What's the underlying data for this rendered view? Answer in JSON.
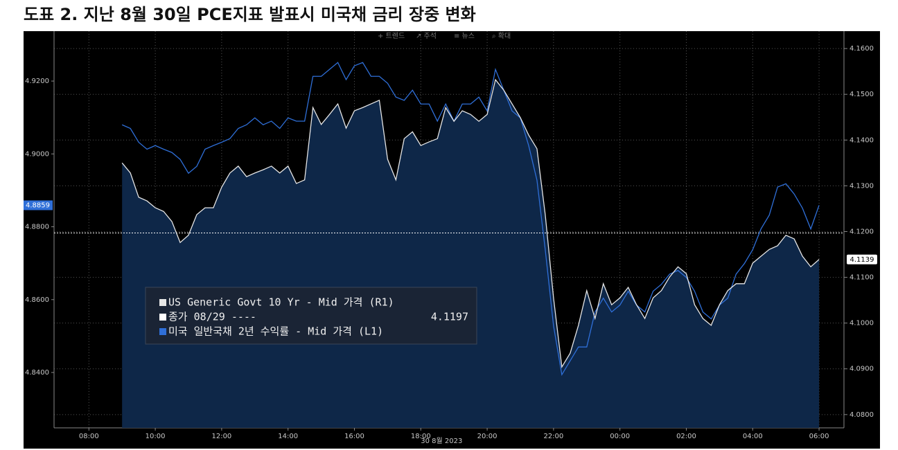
{
  "chart_data": {
    "type": "line",
    "title": "도표 2. 지난 8월 30일 PCE지표 발표시 미국채 금리 장중 변화",
    "toolbar": [
      "+ 트렌드",
      "↗ 주석",
      "≡ 뉴스",
      "⌕ 확대"
    ],
    "x_label": "30 8월 2023",
    "x": [
      9,
      9.25,
      9.5,
      9.75,
      10,
      10.25,
      10.5,
      10.75,
      11,
      11.25,
      11.5,
      11.75,
      12,
      12.25,
      12.5,
      12.75,
      13,
      13.25,
      13.5,
      13.75,
      14,
      14.25,
      14.5,
      14.75,
      15,
      15.25,
      15.5,
      15.75,
      16,
      16.25,
      16.5,
      16.75,
      17,
      17.25,
      17.5,
      17.75,
      18,
      18.25,
      18.5,
      18.75,
      19,
      19.25,
      19.5,
      19.75,
      20,
      20.25,
      20.5,
      20.75,
      21,
      21.25,
      21.5,
      21.75,
      22,
      22.25,
      22.5,
      22.75,
      23,
      23.25,
      23.5,
      23.75,
      24,
      24.25,
      24.5,
      24.75,
      25,
      25.25,
      25.5,
      25.75,
      26,
      26.25,
      26.5,
      26.75,
      27,
      27.25,
      27.5,
      27.75,
      28,
      28.25,
      28.5,
      28.75,
      29,
      29.25,
      29.5,
      29.75,
      30
    ],
    "series": [
      {
        "name": "US Generic Govt 10 Yr - Mid 가격 (R1)",
        "color": "#e6e6e6",
        "fill": "#0e2748",
        "axis": "y2",
        "values": [
          4.135,
          4.1328,
          4.1275,
          4.1267,
          4.1252,
          4.1244,
          4.1222,
          4.1176,
          4.1192,
          4.1237,
          4.1252,
          4.1252,
          4.1297,
          4.1328,
          4.1343,
          4.132,
          4.1328,
          4.1335,
          4.1343,
          4.1328,
          4.1343,
          4.1305,
          4.1313,
          4.1471,
          4.1434,
          4.1456,
          4.1479,
          4.1426,
          4.1464,
          4.1471,
          4.1479,
          4.1487,
          4.1358,
          4.1313,
          4.1403,
          4.1418,
          4.1388,
          4.1396,
          4.1403,
          4.1471,
          4.1441,
          4.1464,
          4.1456,
          4.1441,
          4.1456,
          4.1532,
          4.1509,
          4.1479,
          4.1449,
          4.1411,
          4.1381,
          4.1237,
          4.1055,
          4.0904,
          4.0934,
          4.0995,
          4.1071,
          4.101,
          4.1086,
          4.104,
          4.1055,
          4.1078,
          4.104,
          4.101,
          4.1055,
          4.1071,
          4.1101,
          4.1123,
          4.1108,
          4.104,
          4.101,
          4.0995,
          4.104,
          4.1071,
          4.1086,
          4.1086,
          4.1131,
          4.1146,
          4.1161,
          4.1169,
          4.1192,
          4.1184,
          4.1146,
          4.1123,
          4.1139
        ]
      },
      {
        "name": "미국 일반국채 2년 수익률 - Mid 가격 (L1)",
        "color": "#2f6fd8",
        "axis": "y",
        "values": [
          4.908,
          4.907,
          4.9032,
          4.9013,
          4.9023,
          4.9013,
          4.9004,
          4.8985,
          4.8947,
          4.8966,
          4.9013,
          4.9023,
          4.9032,
          4.9042,
          4.907,
          4.908,
          4.9099,
          4.908,
          4.909,
          4.907,
          4.9099,
          4.909,
          4.909,
          4.9213,
          4.9213,
          4.9232,
          4.9251,
          4.9204,
          4.9242,
          4.9251,
          4.9213,
          4.9213,
          4.9194,
          4.9156,
          4.9147,
          4.9175,
          4.9137,
          4.9137,
          4.909,
          4.9137,
          4.909,
          4.9137,
          4.9137,
          4.9156,
          4.9118,
          4.9232,
          4.9175,
          4.9118,
          4.9099,
          4.9023,
          4.8928,
          4.8737,
          4.8528,
          4.8394,
          4.8432,
          4.847,
          4.847,
          4.8566,
          4.8604,
          4.8566,
          4.8585,
          4.8623,
          4.8585,
          4.8566,
          4.8623,
          4.8642,
          4.867,
          4.868,
          4.8661,
          4.8623,
          4.8566,
          4.8547,
          4.8585,
          4.8604,
          4.867,
          4.8699,
          4.8737,
          4.8794,
          4.8832,
          4.8909,
          4.8918,
          4.889,
          4.8851,
          4.8794,
          4.8859
        ]
      }
    ],
    "prev_close": {
      "label": "종가 08/29 ----",
      "value": 4.1197,
      "color": "#ffffff"
    },
    "xlim": [
      6.95,
      30.75
    ],
    "xticks": [
      {
        "value": 8,
        "label": "08:00"
      },
      {
        "value": 10,
        "label": "10:00"
      },
      {
        "value": 12,
        "label": "12:00"
      },
      {
        "value": 14,
        "label": "14:00"
      },
      {
        "value": 16,
        "label": "16:00"
      },
      {
        "value": 18,
        "label": "18:00"
      },
      {
        "value": 20,
        "label": "20:00"
      },
      {
        "value": 22,
        "label": "22:00"
      },
      {
        "value": 24,
        "label": "00:00"
      },
      {
        "value": 26,
        "label": "02:00"
      },
      {
        "value": 28,
        "label": "04:00"
      },
      {
        "value": 30,
        "label": "06:00"
      }
    ],
    "ylim": [
      4.8248,
      4.9337
    ],
    "yticks": [
      {
        "value": 4.84,
        "label": "4.8400"
      },
      {
        "value": 4.86,
        "label": "4.8600"
      },
      {
        "value": 4.88,
        "label": "4.8800"
      },
      {
        "value": 4.9,
        "label": "4.9000"
      },
      {
        "value": 4.92,
        "label": "4.9200"
      }
    ],
    "y2lim": [
      4.0771,
      4.1638
    ],
    "y2ticks": [
      {
        "value": 4.08,
        "label": "4.0800"
      },
      {
        "value": 4.09,
        "label": "4.0900"
      },
      {
        "value": 4.1,
        "label": "4.1000"
      },
      {
        "value": 4.11,
        "label": "4.1100"
      },
      {
        "value": 4.12,
        "label": "4.1200"
      },
      {
        "value": 4.13,
        "label": "4.1300"
      },
      {
        "value": 4.14,
        "label": "4.1400"
      },
      {
        "value": 4.15,
        "label": "4.1500"
      },
      {
        "value": 4.16,
        "label": "4.1600"
      }
    ],
    "grid": true
  }
}
